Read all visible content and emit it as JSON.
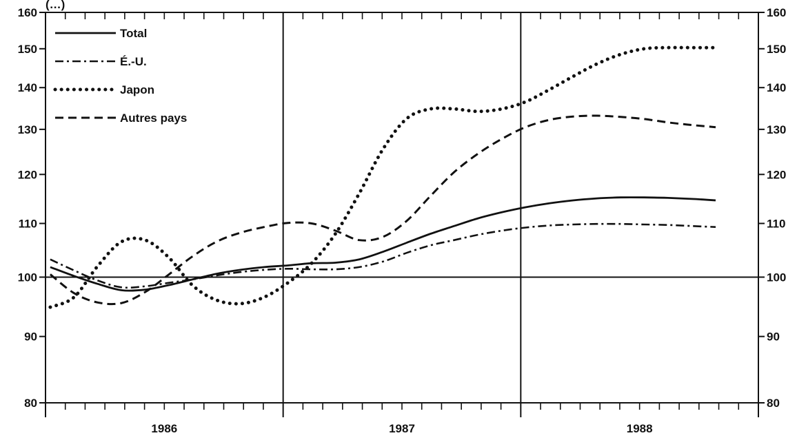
{
  "chart_data": {
    "type": "line",
    "caption_top": "(…)",
    "y_scale": "log",
    "ylim": [
      80,
      160
    ],
    "xlim": [
      1986.0,
      1989.0
    ],
    "y_ticks": [
      80,
      90,
      100,
      110,
      120,
      130,
      140,
      150,
      160
    ],
    "y_tick_labels": [
      "80",
      "90",
      "100",
      "110",
      "120",
      "130",
      "140",
      "150",
      "160"
    ],
    "year_labels": [
      "1986",
      "1987",
      "1988"
    ],
    "year_positions": [
      1986.5,
      1987.5,
      1988.5
    ],
    "year_dividers": [
      1987.0,
      1988.0
    ],
    "baseline": 100,
    "minor_ticks_per_year": 12,
    "legend_placement": "top-left",
    "series": [
      {
        "name": "Total",
        "style": "solid",
        "x": [
          1986.02,
          1986.12,
          1986.22,
          1986.32,
          1986.42,
          1986.52,
          1986.62,
          1986.72,
          1986.82,
          1986.92,
          1987.02,
          1987.12,
          1987.22,
          1987.32,
          1987.42,
          1987.52,
          1987.62,
          1987.72,
          1987.82,
          1987.92,
          1988.02,
          1988.12,
          1988.22,
          1988.32,
          1988.42,
          1988.52,
          1988.62,
          1988.72,
          1988.82
        ],
        "values": [
          101.8,
          100.2,
          98.8,
          97.7,
          97.8,
          98.6,
          99.6,
          100.6,
          101.3,
          101.8,
          102.1,
          102.5,
          102.6,
          103.2,
          104.6,
          106.3,
          108.0,
          109.5,
          111.0,
          112.2,
          113.2,
          114.0,
          114.6,
          115.0,
          115.2,
          115.2,
          115.1,
          114.9,
          114.6
        ]
      },
      {
        "name": "É.-U.",
        "style": "dash-dot",
        "x": [
          1986.02,
          1986.12,
          1986.22,
          1986.32,
          1986.42,
          1986.52,
          1986.62,
          1986.72,
          1986.82,
          1986.92,
          1987.02,
          1987.12,
          1987.22,
          1987.32,
          1987.42,
          1987.52,
          1987.62,
          1987.72,
          1987.82,
          1987.92,
          1988.02,
          1988.12,
          1988.22,
          1988.32,
          1988.42,
          1988.52,
          1988.62,
          1988.72,
          1988.82
        ],
        "values": [
          103.2,
          101.2,
          99.4,
          98.2,
          98.4,
          99.0,
          99.6,
          100.3,
          100.9,
          101.3,
          101.5,
          101.4,
          101.4,
          101.8,
          102.8,
          104.4,
          105.8,
          106.8,
          107.8,
          108.6,
          109.2,
          109.6,
          109.8,
          109.9,
          109.9,
          109.8,
          109.7,
          109.5,
          109.3
        ]
      },
      {
        "name": "Japon",
        "style": "dotted",
        "x": [
          1986.02,
          1986.12,
          1986.22,
          1986.32,
          1986.42,
          1986.52,
          1986.62,
          1986.72,
          1986.82,
          1986.92,
          1987.02,
          1987.12,
          1987.22,
          1987.32,
          1987.42,
          1987.52,
          1987.62,
          1987.72,
          1987.82,
          1987.92,
          1988.02,
          1988.12,
          1988.22,
          1988.32,
          1988.42,
          1988.52,
          1988.62,
          1988.72,
          1988.82
        ],
        "values": [
          94.8,
          96.5,
          102.0,
          106.5,
          106.8,
          103.5,
          98.5,
          96.0,
          95.4,
          96.5,
          99.0,
          102.5,
          108.0,
          116.0,
          125.5,
          132.5,
          134.8,
          134.8,
          134.2,
          134.8,
          136.5,
          139.5,
          142.8,
          146.0,
          148.5,
          150.0,
          150.3,
          150.3,
          150.3
        ]
      },
      {
        "name": "Autres pays",
        "style": "dashed",
        "x": [
          1986.02,
          1986.12,
          1986.22,
          1986.32,
          1986.42,
          1986.52,
          1986.62,
          1986.72,
          1986.82,
          1986.92,
          1987.02,
          1987.12,
          1987.22,
          1987.32,
          1987.42,
          1987.52,
          1987.62,
          1987.72,
          1987.82,
          1987.92,
          1988.02,
          1988.12,
          1988.22,
          1988.32,
          1988.42,
          1988.52,
          1988.62,
          1988.72,
          1988.82
        ],
        "values": [
          100.5,
          97.2,
          95.6,
          95.5,
          97.4,
          100.5,
          103.8,
          106.5,
          108.2,
          109.3,
          110.1,
          110.0,
          108.6,
          106.8,
          107.4,
          110.5,
          115.5,
          120.5,
          124.5,
          127.8,
          130.5,
          132.2,
          133.0,
          133.2,
          132.9,
          132.4,
          131.6,
          131.0,
          130.5
        ]
      }
    ]
  }
}
